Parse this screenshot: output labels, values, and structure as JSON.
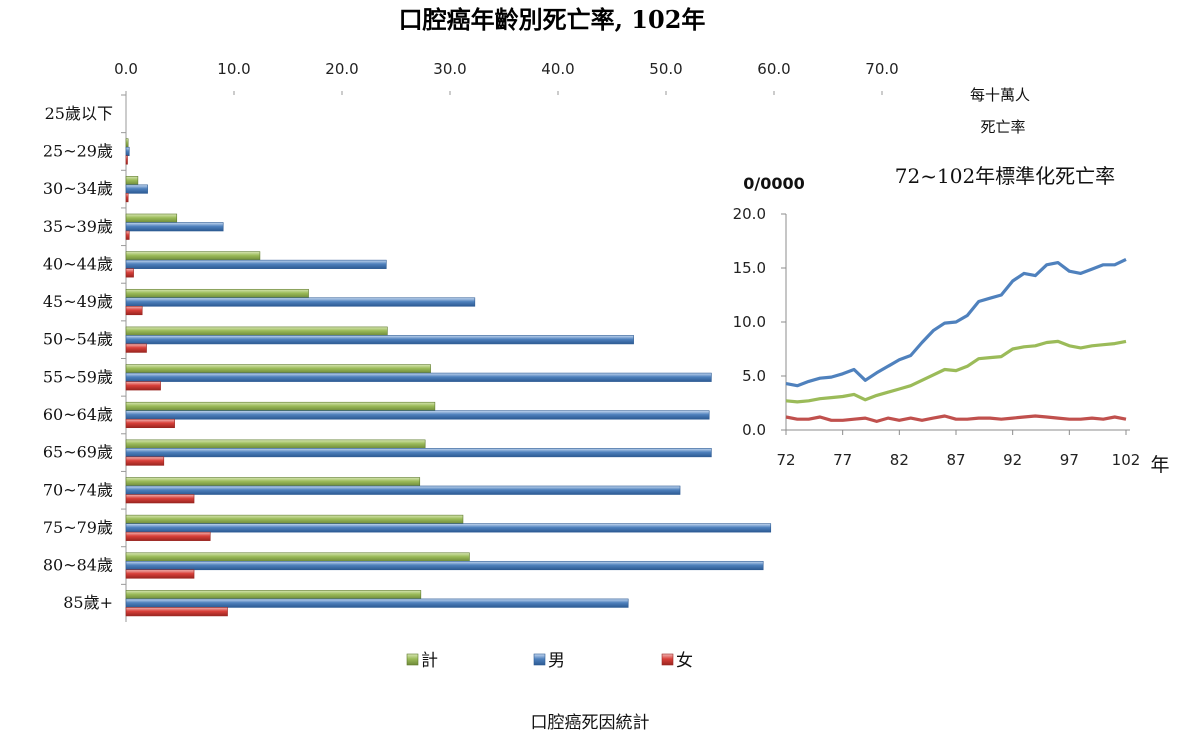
{
  "caption": "口腔癌死因統計",
  "colors": {
    "total": "#9bbb59",
    "male": "#4f81bd",
    "female": "#c0504d"
  },
  "chart_data": [
    {
      "type": "bar",
      "orientation": "horizontal",
      "title": "口腔癌年齡別死亡率, 102年",
      "xlim": [
        0,
        70
      ],
      "x_ticks": [
        "0.0",
        "10.0",
        "20.0",
        "30.0",
        "40.0",
        "50.0",
        "60.0",
        "70.0"
      ],
      "unit_label": [
        "每十萬人",
        "死亡率"
      ],
      "categories": [
        "25歲以下",
        "25~29歲",
        "30~34歲",
        "35~39歲",
        "40~44歲",
        "45~49歲",
        "50~54歲",
        "55~59歲",
        "60~64歲",
        "65~69歲",
        "70~74歲",
        "75~79歲",
        "80~84歲",
        "85歲+"
      ],
      "legend_position": "bottom",
      "series": [
        {
          "name": "計",
          "key": "total",
          "values": [
            0.0,
            0.2,
            1.1,
            4.7,
            12.4,
            16.9,
            24.2,
            28.2,
            28.6,
            27.7,
            27.2,
            31.2,
            31.8,
            27.3
          ]
        },
        {
          "name": "男",
          "key": "male",
          "values": [
            0.0,
            0.3,
            2.0,
            9.0,
            24.1,
            32.3,
            47.0,
            54.2,
            54.0,
            54.2,
            51.3,
            59.7,
            59.0,
            46.5
          ]
        },
        {
          "name": "女",
          "key": "female",
          "values": [
            0.0,
            0.1,
            0.2,
            0.3,
            0.7,
            1.5,
            1.9,
            3.2,
            4.5,
            3.5,
            6.3,
            7.8,
            6.3,
            9.4
          ]
        }
      ]
    },
    {
      "type": "line",
      "title": "72~102年標準化死亡率",
      "y_unit_label": "0/0000",
      "x_unit_label": "年",
      "ylim": [
        0,
        20
      ],
      "y_ticks": [
        "0.0",
        "5.0",
        "10.0",
        "15.0",
        "20.0"
      ],
      "x_ticks": [
        "72",
        "77",
        "82",
        "87",
        "92",
        "97",
        "102"
      ],
      "x": [
        72,
        73,
        74,
        75,
        76,
        77,
        78,
        79,
        80,
        81,
        82,
        83,
        84,
        85,
        86,
        87,
        88,
        89,
        90,
        91,
        92,
        93,
        94,
        95,
        96,
        97,
        98,
        99,
        100,
        101,
        102
      ],
      "series": [
        {
          "key": "male",
          "values": [
            4.3,
            4.1,
            4.5,
            4.8,
            4.9,
            5.2,
            5.6,
            4.6,
            5.3,
            5.9,
            6.5,
            6.9,
            8.1,
            9.2,
            9.9,
            10.0,
            10.6,
            11.9,
            12.2,
            12.5,
            13.8,
            14.5,
            14.3,
            15.3,
            15.5,
            14.7,
            14.5,
            14.9,
            15.3,
            15.3,
            15.8
          ]
        },
        {
          "key": "total",
          "values": [
            2.7,
            2.6,
            2.7,
            2.9,
            3.0,
            3.1,
            3.3,
            2.8,
            3.2,
            3.5,
            3.8,
            4.1,
            4.6,
            5.1,
            5.6,
            5.5,
            5.9,
            6.6,
            6.7,
            6.8,
            7.5,
            7.7,
            7.8,
            8.1,
            8.2,
            7.8,
            7.6,
            7.8,
            7.9,
            8.0,
            8.2
          ]
        },
        {
          "key": "female",
          "values": [
            1.2,
            1.0,
            1.0,
            1.2,
            0.9,
            0.9,
            1.0,
            1.1,
            0.8,
            1.1,
            0.9,
            1.1,
            0.9,
            1.1,
            1.3,
            1.0,
            1.0,
            1.1,
            1.1,
            1.0,
            1.1,
            1.2,
            1.3,
            1.2,
            1.1,
            1.0,
            1.0,
            1.1,
            1.0,
            1.2,
            1.0
          ]
        }
      ]
    }
  ]
}
